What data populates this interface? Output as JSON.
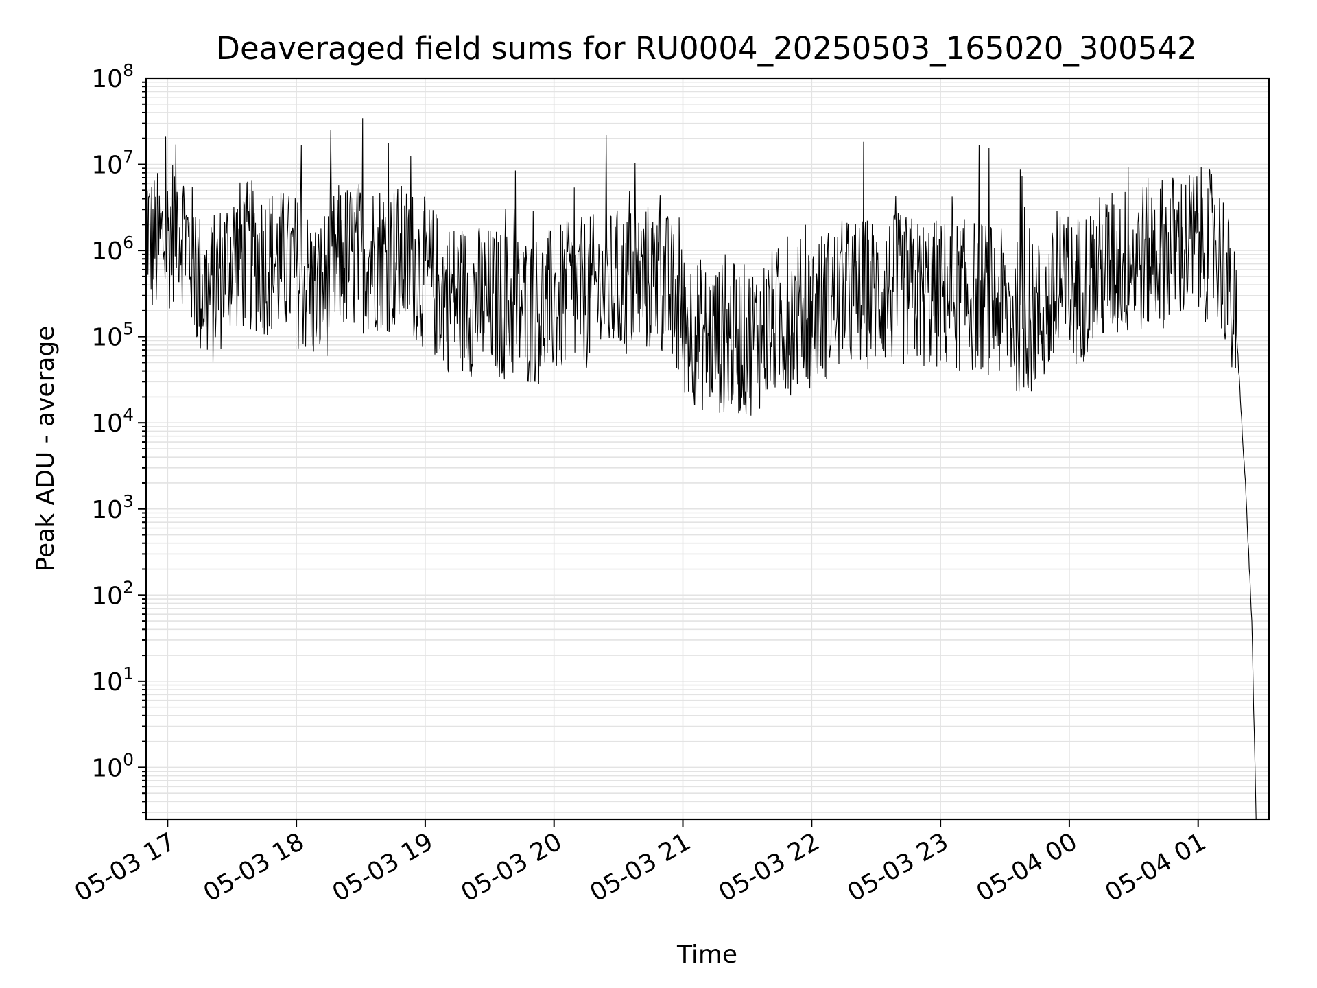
{
  "chart_data": {
    "type": "line",
    "title": "Deaveraged field sums for RU0004_20250503_165020_300542",
    "xlabel": "Time",
    "ylabel": "Peak ADU - average",
    "yscale": "log",
    "ylim": [
      0.25,
      100000000
    ],
    "xlim": [
      "2025-05-03 16:50",
      "2025-05-04 01:33"
    ],
    "grid": true,
    "legend": "none",
    "x_ticks": [
      {
        "t": "2025-05-03 17:00",
        "label": "05-03 17"
      },
      {
        "t": "2025-05-03 18:00",
        "label": "05-03 18"
      },
      {
        "t": "2025-05-03 19:00",
        "label": "05-03 19"
      },
      {
        "t": "2025-05-03 20:00",
        "label": "05-03 20"
      },
      {
        "t": "2025-05-03 21:00",
        "label": "05-03 21"
      },
      {
        "t": "2025-05-03 22:00",
        "label": "05-03 22"
      },
      {
        "t": "2025-05-03 23:00",
        "label": "05-03 23"
      },
      {
        "t": "2025-05-04 00:00",
        "label": "05-04 00"
      },
      {
        "t": "2025-05-04 01:00",
        "label": "05-04 01"
      }
    ],
    "y_ticks": [
      {
        "value": 1,
        "base": "10",
        "exp": "0"
      },
      {
        "value": 10,
        "base": "10",
        "exp": "1"
      },
      {
        "value": 100,
        "base": "10",
        "exp": "2"
      },
      {
        "value": 1000,
        "base": "10",
        "exp": "3"
      },
      {
        "value": 10000,
        "base": "10",
        "exp": "4"
      },
      {
        "value": 100000,
        "base": "10",
        "exp": "5"
      },
      {
        "value": 1000000,
        "base": "10",
        "exp": "6"
      },
      {
        "value": 10000000,
        "base": "10",
        "exp": "7"
      },
      {
        "value": 100000000,
        "base": "10",
        "exp": "8"
      }
    ],
    "colors": {
      "line": "#000000",
      "grid": "#e3e3e3",
      "frame": "#000000"
    },
    "series": [
      {
        "points": [
          [
            "2025-05-03 16:50",
            3000000
          ],
          [
            "2025-05-03 16:52",
            1200000
          ],
          [
            "2025-05-03 16:55",
            1100000
          ],
          [
            "2025-05-03 17:00",
            1400000
          ],
          [
            "2025-05-03 17:05",
            2500000
          ],
          [
            "2025-05-03 17:08",
            1500000
          ],
          [
            "2025-05-03 17:15",
            400000
          ],
          [
            "2025-05-03 17:20",
            300000
          ],
          [
            "2025-05-03 17:30",
            900000
          ],
          [
            "2025-05-03 17:45",
            800000
          ],
          [
            "2025-05-03 18:00",
            600000
          ],
          [
            "2025-05-03 18:10",
            300000
          ],
          [
            "2025-05-03 18:20",
            800000
          ],
          [
            "2025-05-03 18:40",
            900000
          ],
          [
            "2025-05-03 18:55",
            700000
          ],
          [
            "2025-05-03 19:10",
            300000
          ],
          [
            "2025-05-03 19:30",
            250000
          ],
          [
            "2025-05-03 19:50",
            200000
          ],
          [
            "2025-05-03 20:10",
            300000
          ],
          [
            "2025-05-03 20:30",
            400000
          ],
          [
            "2025-05-03 20:50",
            500000
          ],
          [
            "2025-05-03 21:00",
            150000
          ],
          [
            "2025-05-03 21:10",
            100000
          ],
          [
            "2025-05-03 21:30",
            90000
          ],
          [
            "2025-05-03 21:45",
            150000
          ],
          [
            "2025-05-03 22:00",
            200000
          ],
          [
            "2025-05-03 22:15",
            300000
          ],
          [
            "2025-05-03 22:40",
            350000
          ],
          [
            "2025-05-03 23:00",
            300000
          ],
          [
            "2025-05-03 23:20",
            300000
          ],
          [
            "2025-05-03 23:40",
            150000
          ],
          [
            "2025-05-04 00:00",
            300000
          ],
          [
            "2025-05-04 00:15",
            600000
          ],
          [
            "2025-05-04 00:30",
            800000
          ],
          [
            "2025-05-04 00:45",
            1000000
          ],
          [
            "2025-05-04 01:00",
            1200000
          ],
          [
            "2025-05-04 01:08",
            1100000
          ],
          [
            "2025-05-04 01:12",
            700000
          ],
          [
            "2025-05-04 01:18",
            100000
          ],
          [
            "2025-05-04 01:22",
            2000
          ],
          [
            "2025-05-04 01:25",
            50
          ],
          [
            "2025-05-04 01:27",
            0.25
          ]
        ]
      }
    ]
  }
}
